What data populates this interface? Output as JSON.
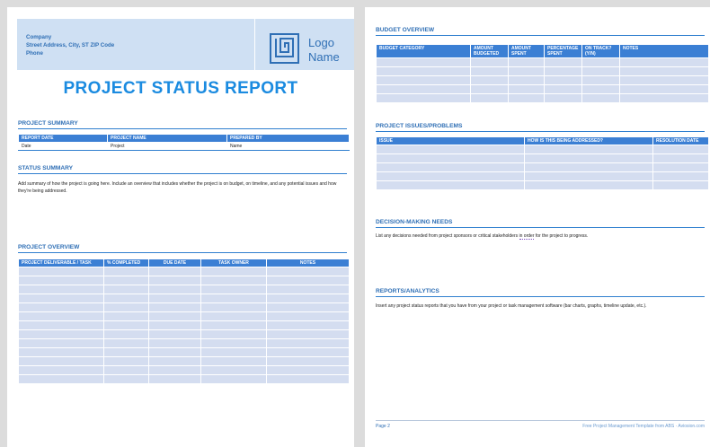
{
  "header": {
    "company_lines": [
      "Company",
      "Street Address, City, ST ZIP Code",
      "Phone"
    ],
    "logo_lines": [
      "Logo",
      "Name"
    ]
  },
  "title": "PROJECT STATUS REPORT",
  "project_summary": {
    "heading": "PROJECT SUMMARY",
    "columns": [
      "REPORT DATE",
      "PROJECT NAME",
      "PREPARED BY"
    ],
    "values": [
      "Date",
      "Project",
      "Name"
    ]
  },
  "status_summary": {
    "heading": "STATUS SUMMARY",
    "text": "Add summary of how the project is going here. Include an overview that includes whether the project is on budget, on timeline, and any potential issues and how they're being addressed."
  },
  "project_overview": {
    "heading": "PROJECT OVERVIEW",
    "columns": [
      "PROJECT DELIVERABLE / TASK",
      "% COMPLETED",
      "DUE DATE",
      "TASK OWNER",
      "NOTES"
    ],
    "row_count": 13
  },
  "budget_overview": {
    "heading": "BUDGET OVERVIEW",
    "columns": [
      "BUDGET CATEGORY",
      "AMOUNT BUDGETED",
      "AMOUNT SPENT",
      "PERCENTAGE SPENT",
      "ON TRACK? (Y/N)",
      "NOTES"
    ],
    "row_count": 5
  },
  "issues": {
    "heading": "PROJECT ISSUES/PROBLEMS",
    "columns": [
      "ISSUE",
      "HOW IS THIS BEING ADDRESSED?",
      "RESOLUTION DATE"
    ],
    "row_count": 5
  },
  "decision_needs": {
    "heading": "DECISION-MAKING NEEDS",
    "text_before": "List any decisions needed from project sponsors or critical stakeholders ",
    "text_underlined": "in order",
    "text_after": " for the project to progress."
  },
  "reports": {
    "heading": "REPORTS/ANALYTICS",
    "text": "Insert any project status reports that you have from your project or task management software (bar charts, graphs, timeline update, etc.)."
  },
  "footer": {
    "page_label": "Page 2",
    "credit": "Free Project Management Template from ABS · Aviosion.com"
  },
  "colors": {
    "accent": "#1b8be0",
    "table_header": "#3b7fd4",
    "row_shade": "#d4ddf0",
    "header_band": "#cfe0f3"
  },
  "icons": [
    "logo-maze-icon"
  ]
}
